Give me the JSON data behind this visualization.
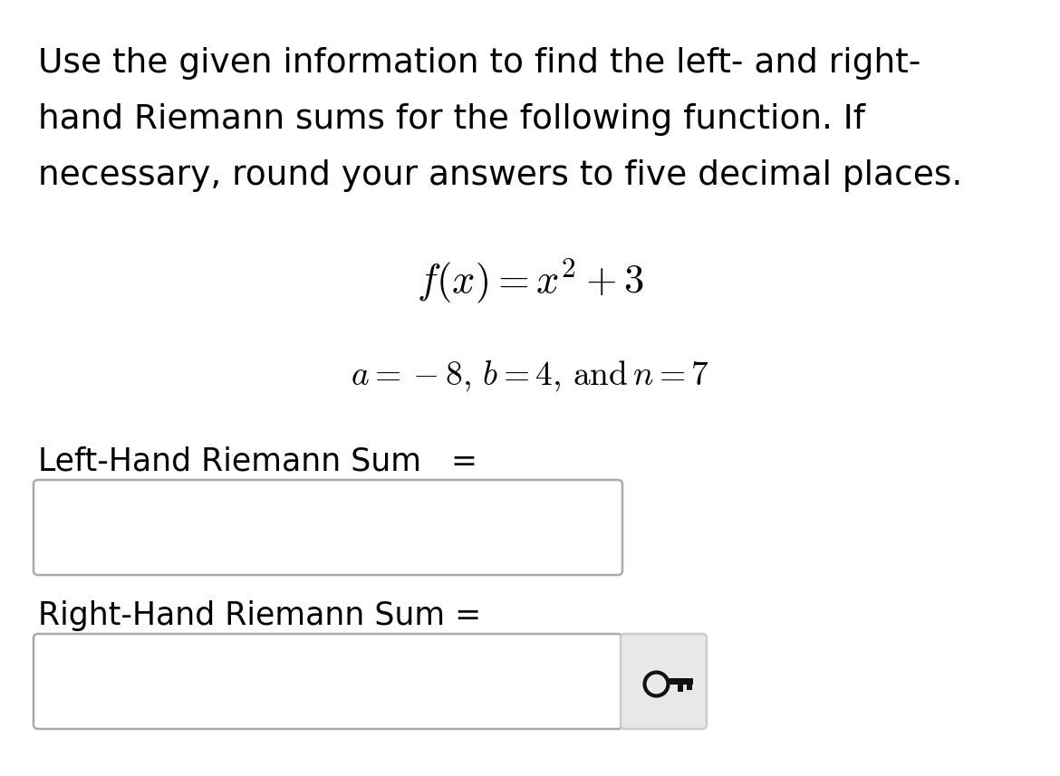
{
  "bg_color": "#ffffff",
  "text_color": "#000000",
  "instruction_line1": "Use the given information to find the left- and right-",
  "instruction_line2": "hand Riemann sums for the following function. If",
  "instruction_line3": "necessary, round your answers to five decimal places.",
  "function_latex": "$f(x) = x^2 + 3$",
  "params_latex": "$a = -8,\\, b = 4,\\, \\mathrm{and}\\, n = 7$",
  "left_label": "Left-Hand Riemann Sum   =",
  "right_label": "Right-Hand Riemann Sum =",
  "instr_fontsize": 27,
  "formula_fontsize": 32,
  "params_fontsize": 27,
  "label_fontsize": 25
}
